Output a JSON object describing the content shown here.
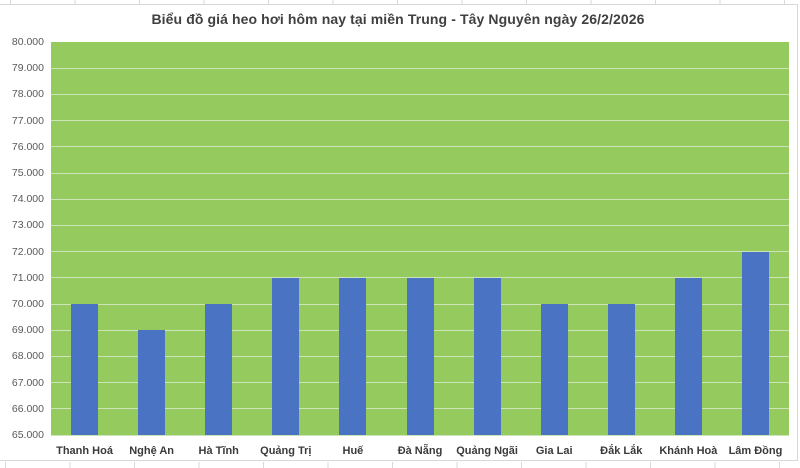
{
  "chart_data": {
    "type": "bar",
    "title": "Biểu đồ giá heo hơi hôm nay tại miền Trung - Tây Nguyên ngày 26/2/2026",
    "categories": [
      "Thanh Hoá",
      "Nghệ An",
      "Hà Tĩnh",
      "Quảng Trị",
      "Huế",
      "Đà Nẵng",
      "Quảng Ngãi",
      "Gia Lai",
      "Đắk Lắk",
      "Khánh Hoà",
      "Lâm Đồng"
    ],
    "values": [
      70000,
      69000,
      70000,
      71000,
      71000,
      71000,
      71000,
      70000,
      70000,
      71000,
      72000
    ],
    "xlabel": "",
    "ylabel": "",
    "ylim": [
      65000,
      80000
    ],
    "y_tick_step": 1000,
    "y_tick_labels": [
      "80.000",
      "79.000",
      "78.000",
      "77.000",
      "76.000",
      "75.000",
      "74.000",
      "73.000",
      "72.000",
      "71.000",
      "70.000",
      "69.000",
      "68.000",
      "67.000",
      "66.000",
      "65.000"
    ],
    "grid": true,
    "legend": false,
    "colors": {
      "bar": "#4a73c4",
      "plot_background": "#95ca5f",
      "gridline": "#cde4b8",
      "title_text": "#404040",
      "y_tick_text": "#595959",
      "x_tick_text": "#3a3a3a",
      "chart_border": "#d8d8d8",
      "sheet_gridline": "#d9d9d9"
    }
  }
}
